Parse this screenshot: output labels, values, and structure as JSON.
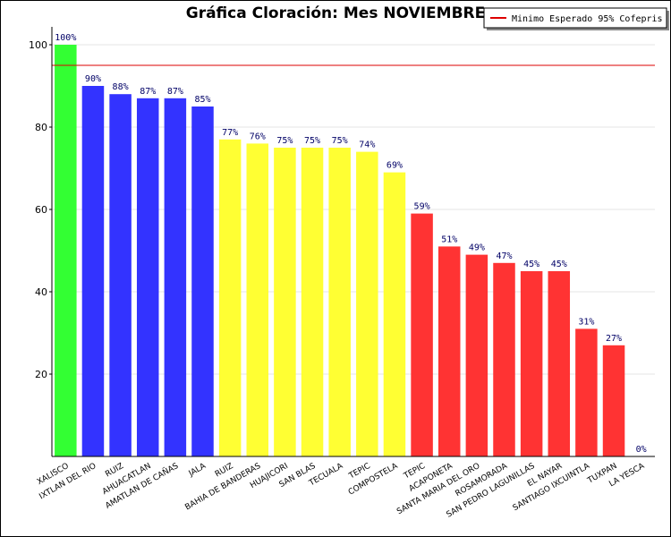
{
  "chart_data": {
    "type": "bar",
    "title": "Gráfica Cloración: Mes NOVIEMBRE",
    "categories": [
      "XALISCO",
      "IXTLAN DEL RIO",
      "RUIZ",
      "AHUACATLAN",
      "AMATLAN DE CAÑAS",
      "JALA",
      "RUIZ",
      "BAHIA DE BANDERAS",
      "HUAJICORI",
      "SAN BLAS",
      "TECUALA",
      "TEPIC",
      "COMPOSTELA",
      "TEPIC",
      "ACAPONETA",
      "SANTA MARIA DEL ORO",
      "ROSAMORADA",
      "SAN PEDRO LAGUNILLAS",
      "EL NAYAR",
      "SANTIAGO IXCUINTLA",
      "TUXPAN",
      "LA YESCA"
    ],
    "values": [
      100,
      90,
      88,
      87,
      87,
      85,
      77,
      76,
      75,
      75,
      75,
      74,
      69,
      59,
      51,
      49,
      47,
      45,
      45,
      31,
      27,
      0
    ],
    "value_labels": [
      "100%",
      "90%",
      "88%",
      "87%",
      "87%",
      "85%",
      "77%",
      "76%",
      "75%",
      "75%",
      "75%",
      "74%",
      "69%",
      "59%",
      "51%",
      "49%",
      "47%",
      "45%",
      "45%",
      "31%",
      "27%",
      "0%"
    ],
    "colors": [
      "#33ff33",
      "#3333ff",
      "#3333ff",
      "#3333ff",
      "#3333ff",
      "#3333ff",
      "#ffff33",
      "#ffff33",
      "#ffff33",
      "#ffff33",
      "#ffff33",
      "#ffff33",
      "#ffff33",
      "#ff3333",
      "#ff3333",
      "#ff3333",
      "#ff3333",
      "#ff3333",
      "#ff3333",
      "#ff3333",
      "#ff3333",
      "#ff3333"
    ],
    "ylim": [
      0,
      100
    ],
    "yticks": [
      20,
      40,
      60,
      80,
      100
    ],
    "grid": true,
    "reference_line": {
      "value": 95,
      "label": "Minimo Esperado 95% Cofepris",
      "color": "#dd0000"
    },
    "legend": "top-right"
  }
}
